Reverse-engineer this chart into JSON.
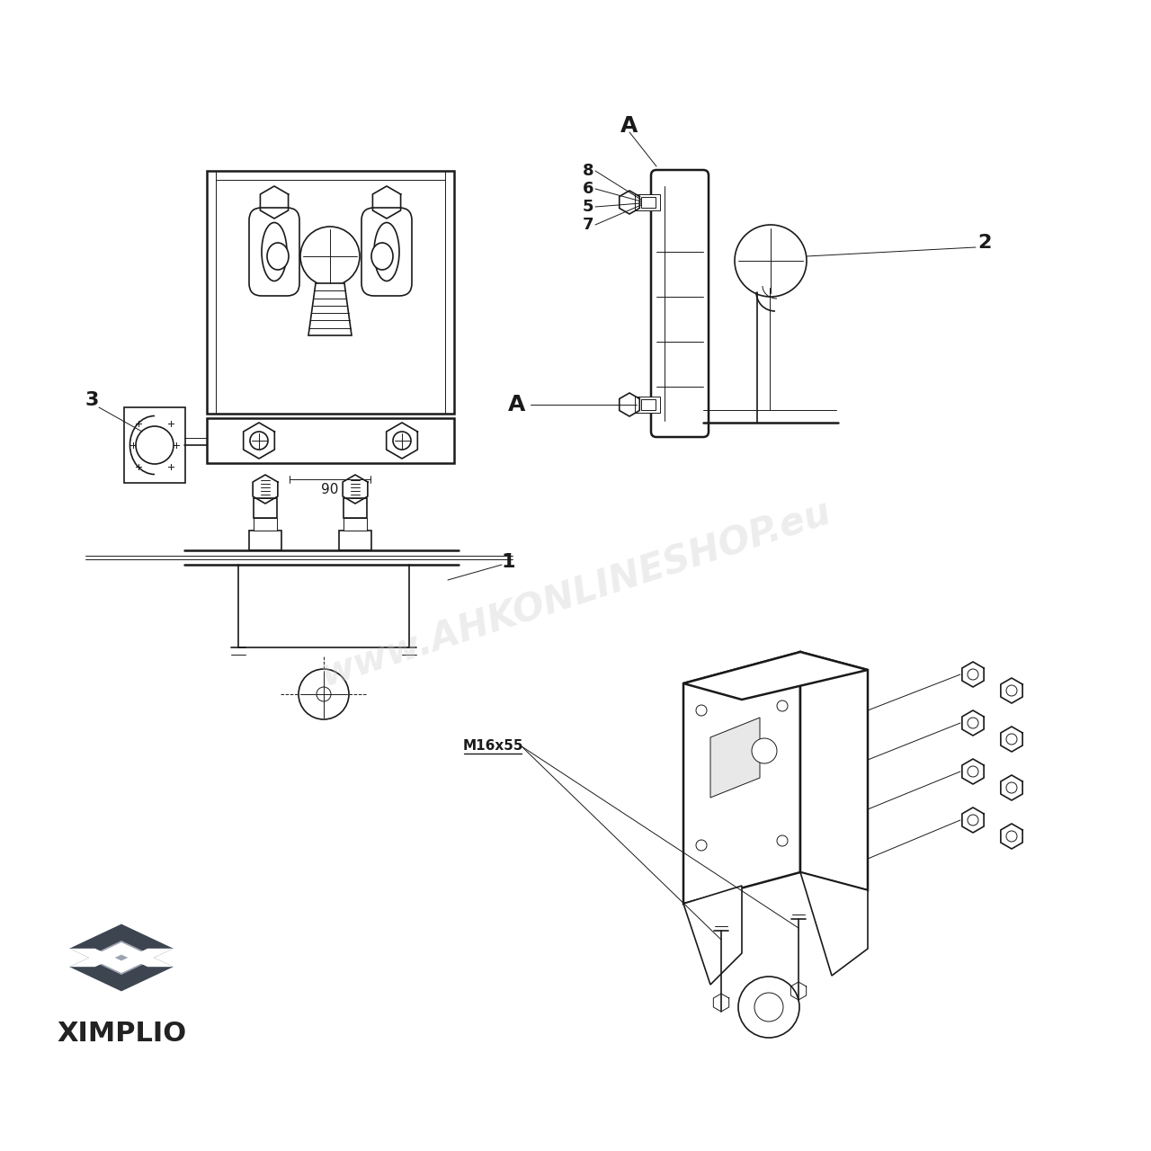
{
  "bg_color": "#ffffff",
  "line_color": "#1a1a1a",
  "watermark_text": "www.AHKONLINESHOP.eu",
  "watermark_color": "#cccccc",
  "watermark_alpha": 0.35,
  "logo_text": "XIMPLIO",
  "logo_color": "#222222",
  "label_A_top": "A",
  "label_A_bottom": "A",
  "label_2": "2",
  "label_3": "3",
  "label_1": "1",
  "label_8": "8",
  "label_6": "6",
  "label_5": "5",
  "label_7": "7",
  "dim_90": "90",
  "bolt_label": "M16x55"
}
